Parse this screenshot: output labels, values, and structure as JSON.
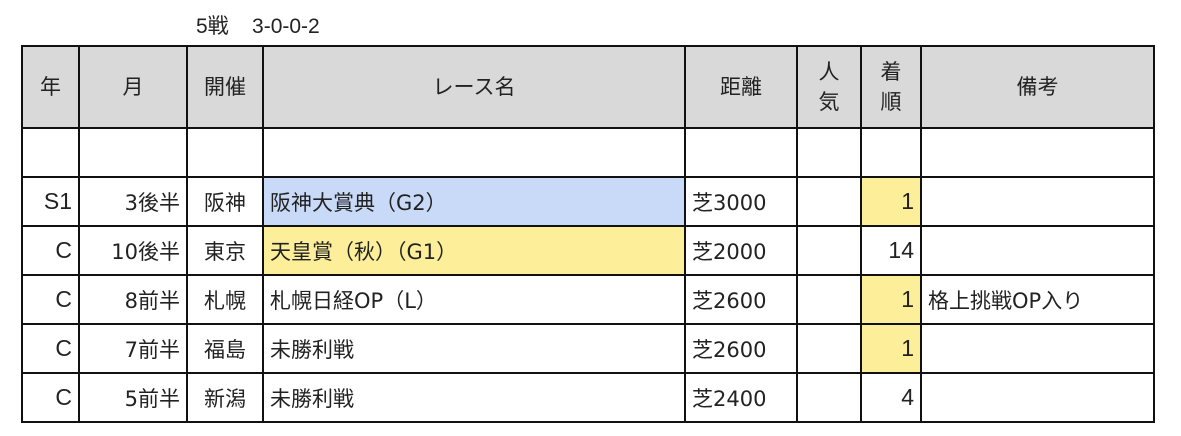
{
  "summary": {
    "races": "5戦",
    "record": "3-0-0-2"
  },
  "colors": {
    "header_bg": "#d9d9d9",
    "g2_highlight": "#c9daf8",
    "g1_highlight": "#fdee9a",
    "win_highlight": "#fdee9a"
  },
  "headers": [
    "年",
    "月",
    "開催",
    "レース名",
    "距離",
    "人\n気",
    "着\n順",
    "備考"
  ],
  "rows": [
    {
      "year": "S1",
      "month": "3後半",
      "venue": "阪神",
      "race": "阪神大賞典（G2）",
      "distance": "芝3000",
      "popularity": "",
      "finish": "1",
      "note": "",
      "race_bg": "#c9daf8",
      "finish_bg": "#fdee9a"
    },
    {
      "year": "C",
      "month": "10後半",
      "venue": "東京",
      "race": "天皇賞（秋）（G1）",
      "distance": "芝2000",
      "popularity": "",
      "finish": "14",
      "note": "",
      "race_bg": "#fdee9a",
      "finish_bg": ""
    },
    {
      "year": "C",
      "month": "8前半",
      "venue": "札幌",
      "race": "札幌日経OP（L）",
      "distance": "芝2600",
      "popularity": "",
      "finish": "1",
      "note": "格上挑戦OP入り",
      "race_bg": "",
      "finish_bg": "#fdee9a"
    },
    {
      "year": "C",
      "month": "7前半",
      "venue": "福島",
      "race": "未勝利戦",
      "distance": "芝2600",
      "popularity": "",
      "finish": "1",
      "note": "",
      "race_bg": "",
      "finish_bg": "#fdee9a"
    },
    {
      "year": "C",
      "month": "5前半",
      "venue": "新潟",
      "race": "未勝利戦",
      "distance": "芝2400",
      "popularity": "",
      "finish": "4",
      "note": "",
      "race_bg": "",
      "finish_bg": ""
    }
  ]
}
